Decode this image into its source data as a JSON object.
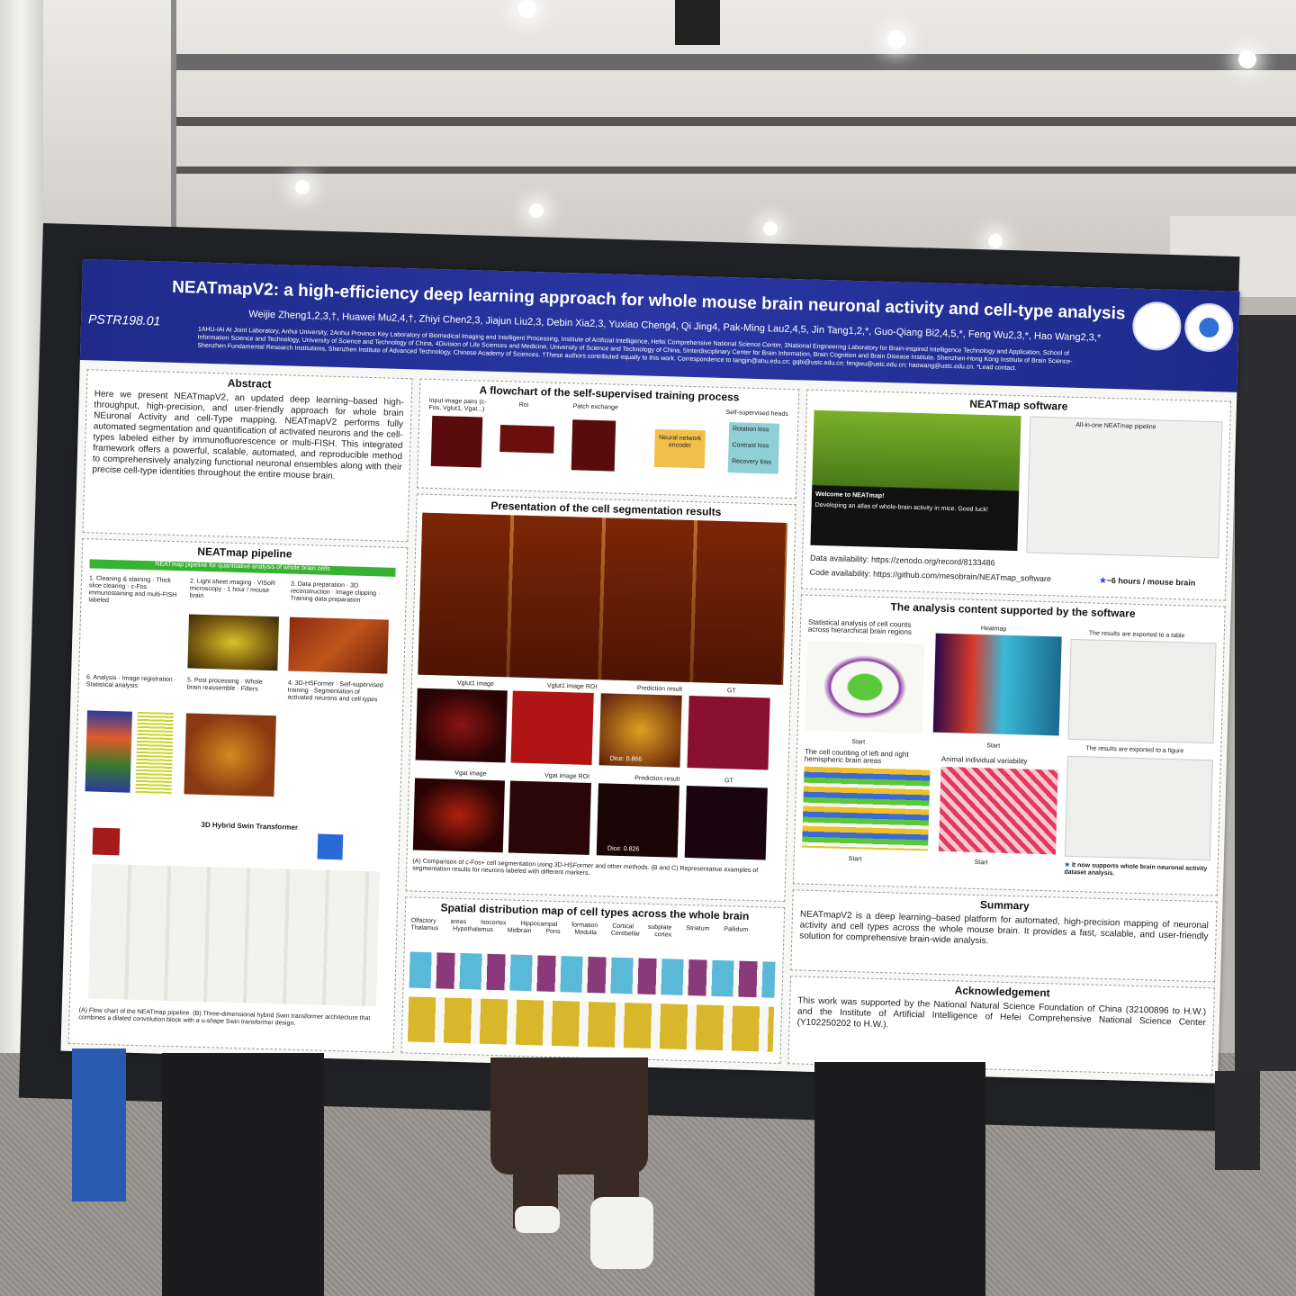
{
  "poster": {
    "id": "PSTR198.01",
    "title": "NEATmapV2: a high-efficiency deep learning approach for whole mouse brain neuronal activity and cell-type analysis",
    "authors": "Weijie Zheng1,2,3,†, Huawei Mu2,4,†, Zhiyi Chen2,3, Jiajun Liu2,3, Debin Xia2,3, Yuxiao Cheng4, Qi Jing4, Pak-Ming Lau2,4,5, Jin Tang1,2,*, Guo-Qiang Bi2,4,5,*, Feng Wu2,3,*, Hao Wang2,3,*",
    "affiliations": "1AHU-IAI AI Joint Laboratory, Anhui University, 2Anhui Province Key Laboratory of Biomedical Imaging and Intelligent Processing, Institute of Artificial Intelligence, Hefei Comprehensive National Science Center, 3National Engineering Laboratory for Brain-inspired Intelligence Technology and Application, School of Information Science and Technology, University of Science and Technology of China, 4Division of Life Sciences and Medicine, University of Science and Technology of China, 5Interdisciplinary Center for Brain Information, Brain Cognition and Brain Disease Institute, Shenzhen-Hong Kong Institute of Brain Science-Shenzhen Fundamental Research Institutions, Shenzhen Institute of Advanced Technology, Chinese Academy of Sciences. †These authors contributed equally to this work. Correspondence to tangjin@ahu.edu.cn; gqbi@ustc.edu.cn; fengwu@ustc.edu.cn; haowang@ustc.edu.cn. *Lead contact.",
    "abstract": {
      "heading": "Abstract",
      "text": "Here we present NEATmapV2, an updated deep learning–based high-throughput, high-precision, and user-friendly approach for whole brain NEuronal Activity and cell-Type mapping. NEATmapV2 performs fully automated segmentation and quantification of activated neurons and the cell-types labeled either by immunofluorescence or multi-FISH. This integrated framework offers a powerful, scalable, automated, and reproducible method to comprehensively analyzing functional neuronal ensembles along with their precise cell-type identities throughout the entire mouse brain."
    },
    "pipeline": {
      "heading": "NEATmap pipeline",
      "bar": "NEATmap pipeline for quantitative analysis of whole brain cells",
      "steps": [
        "1. Cleaning & staining · Thick slice clearing · c-Fos immunostaining and multi-FISH labeled",
        "2. Light sheet imaging · VISoR microscopy · 1 hour / mouse brain",
        "3. Data preparation · 3D reconstruction · Image clipping · Training data preparation",
        "6. Analysis · Image registration · Statistical analysis",
        "5. Post processing · Whole brain reassemble · Filters",
        "4. 3D-HSFormer · Self-supervised training · Segmentation of activated neurons and cell types"
      ],
      "transformer_title": "3D Hybrid Swin Transformer",
      "caption": "(A) Flow chart of the NEATmap pipeline. (B) Three-dimensional hybrid Swin transformer architecture that combines a dilated convolution block with a u-shape Swin transformer design."
    },
    "flowchart": {
      "heading": "A flowchart of the self-supervised training process",
      "labels": [
        "Input image pairs (c-Fos, Vglut1, Vgat...)",
        "Roi",
        "Patch exchange",
        "Self-supervised heads",
        "Neural network encoder",
        "Rotation loss",
        "Contrast loss",
        "Recovery loss"
      ]
    },
    "segmentation": {
      "heading": "Presentation of the cell segmentation results",
      "row_b": [
        "Vglut1 image",
        "Vglut1 image ROI",
        "Prediction result",
        "GT"
      ],
      "row_c": [
        "Vgat image",
        "Vgat image ROI",
        "Prediction result",
        "GT"
      ],
      "dice_b": "Dice: 0.866",
      "dice_c": "Dice: 0.826",
      "caption": "(A) Comparison of c-Fos+ cell segmentation using 3D-HSFormer and other methods. (B and C) Representative examples of segmentation results for neurons labeled with different markers."
    },
    "spatial": {
      "heading": "Spatial distribution map of cell types across the whole brain",
      "regions": [
        "Olfactory areas",
        "Isocortex",
        "Hippocampal formation",
        "Cortical subplate",
        "Striatum",
        "Pallidum",
        "Thalamus",
        "Hypothalamus",
        "Midbrain",
        "Pons",
        "Medulla",
        "Cerebellar cortex"
      ]
    },
    "software": {
      "heading": "NEATmap software",
      "welcome": "Welcome to NEATmap!",
      "welcome_sub": "Developing an atlas of whole-brain activity in mice. Good luck!",
      "panel_title": "All-in-one NEATmap pipeline",
      "data": "Data availability: https://zenodo.org/record/8133486",
      "code": "Code availability: https://github.com/mesobrain/NEATmap_software",
      "speed": "~6 hours / mouse brain"
    },
    "analysis": {
      "heading": "The analysis content supported by the software",
      "stat": "Statistical analysis of cell counts across hierarchical brain regions",
      "heatmap": "Heatmap",
      "export_table": "The results are exported to a table",
      "export_figure": "The results are exported to a figure",
      "hemi": "The cell counting of left and right hemispheric brain areas",
      "animal": "Animal individual variability",
      "start": "Start",
      "note": "It now supports whole brain neuronal activity dataset analysis."
    },
    "summary": {
      "heading": "Summary",
      "text": "NEATmapV2 is a deep learning–based platform for automated, high-precision mapping of neuronal activity and cell types across the whole mouse brain. It provides a fast, scalable, and user-friendly solution for comprehensive brain-wide analysis."
    },
    "ack": {
      "heading": "Acknowledgement",
      "text": "This work was supported by the National Natural Science Foundation of China (32100896 to H.W.) and the Institute of Artificial Intelligence of Hefei Comprehensive National Science Center (Y102250202 to H.W.)."
    }
  }
}
